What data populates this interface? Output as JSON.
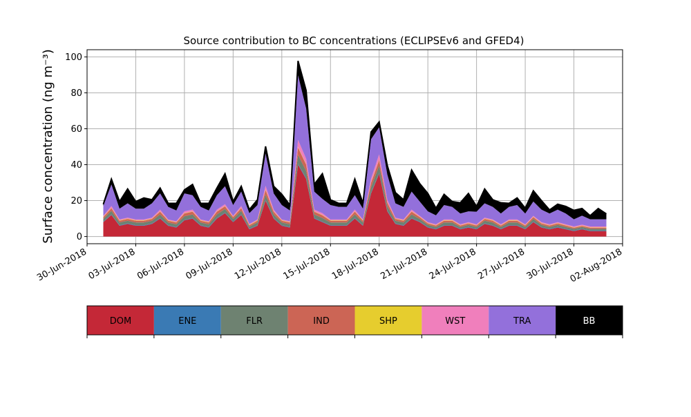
{
  "chart_data": {
    "type": "area",
    "stacked": true,
    "title": "Source contribution to BC concentrations (ECLIPSEv6 and GFED4)",
    "ylabel": "Surface concentration (ng m⁻³)",
    "xlabel": "",
    "ylim": [
      -4,
      104
    ],
    "xlim": [
      "2018-06-30",
      "2018-08-02"
    ],
    "grid": true,
    "yticks": [
      0,
      20,
      40,
      60,
      80,
      100
    ],
    "xticks": [
      "30-Jun-2018",
      "03-Jul-2018",
      "06-Jul-2018",
      "09-Jul-2018",
      "12-Jul-2018",
      "15-Jul-2018",
      "18-Jul-2018",
      "21-Jul-2018",
      "24-Jul-2018",
      "27-Jul-2018",
      "30-Jul-2018",
      "02-Aug-2018"
    ],
    "legend_location": "colorbar below plot",
    "total_outline_color": "#000000",
    "x": [
      "2018-07-01",
      "2018-07-01T12",
      "2018-07-02",
      "2018-07-02T12",
      "2018-07-03",
      "2018-07-03T12",
      "2018-07-04",
      "2018-07-04T12",
      "2018-07-05",
      "2018-07-05T12",
      "2018-07-06",
      "2018-07-06T12",
      "2018-07-07",
      "2018-07-07T12",
      "2018-07-08",
      "2018-07-08T12",
      "2018-07-09",
      "2018-07-09T12",
      "2018-07-10",
      "2018-07-10T12",
      "2018-07-11",
      "2018-07-11T12",
      "2018-07-12",
      "2018-07-12T12",
      "2018-07-13",
      "2018-07-13T12",
      "2018-07-14",
      "2018-07-14T12",
      "2018-07-15",
      "2018-07-15T12",
      "2018-07-16",
      "2018-07-16T12",
      "2018-07-17",
      "2018-07-17T12",
      "2018-07-18",
      "2018-07-18T12",
      "2018-07-19",
      "2018-07-19T12",
      "2018-07-20",
      "2018-07-20T12",
      "2018-07-21",
      "2018-07-21T12",
      "2018-07-22",
      "2018-07-22T12",
      "2018-07-23",
      "2018-07-23T12",
      "2018-07-24",
      "2018-07-24T12",
      "2018-07-25",
      "2018-07-25T12",
      "2018-07-26",
      "2018-07-26T12",
      "2018-07-27",
      "2018-07-27T12",
      "2018-07-28",
      "2018-07-28T12",
      "2018-07-29",
      "2018-07-29T12",
      "2018-07-30",
      "2018-07-30T12",
      "2018-07-31",
      "2018-07-31T12",
      "2018-08-01"
    ],
    "series": [
      {
        "name": "DOM",
        "color": "#c42837",
        "values": [
          8,
          12,
          6,
          7,
          6,
          6,
          7,
          10,
          6,
          5,
          9,
          10,
          6,
          5,
          10,
          13,
          8,
          12,
          4,
          6,
          20,
          10,
          6,
          5,
          40,
          32,
          10,
          8,
          6,
          6,
          6,
          10,
          6,
          24,
          35,
          14,
          7,
          6,
          10,
          8,
          5,
          4,
          6,
          6,
          4,
          5,
          4,
          7,
          6,
          4,
          6,
          6,
          4,
          8,
          5,
          4,
          5,
          4,
          3,
          4,
          3,
          3,
          3
        ]
      },
      {
        "name": "ENE",
        "color": "#3a7ab4",
        "values": [
          0.3,
          0.3,
          0.3,
          0.3,
          0.3,
          0.3,
          0.3,
          0.3,
          0.3,
          0.3,
          0.3,
          0.3,
          0.3,
          0.3,
          0.3,
          0.3,
          0.3,
          0.3,
          0.3,
          0.3,
          0.4,
          0.3,
          0.3,
          0.3,
          0.5,
          0.5,
          0.3,
          0.3,
          0.3,
          0.3,
          0.3,
          0.3,
          0.3,
          0.4,
          0.5,
          0.4,
          0.3,
          0.3,
          0.3,
          0.3,
          0.3,
          0.3,
          0.3,
          0.3,
          0.3,
          0.3,
          0.3,
          0.3,
          0.3,
          0.3,
          0.3,
          0.3,
          0.3,
          0.3,
          0.3,
          0.3,
          0.3,
          0.3,
          0.3,
          0.3,
          0.3,
          0.3,
          0.3
        ]
      },
      {
        "name": "FLR",
        "color": "#6e8271",
        "values": [
          1.5,
          2,
          1.5,
          1.5,
          1.5,
          1.5,
          1.5,
          2,
          1.5,
          1.5,
          2,
          2,
          1.5,
          1.5,
          2,
          2,
          1.5,
          2,
          1.2,
          1.5,
          3,
          2,
          1.5,
          1.5,
          5,
          4,
          2,
          2,
          1.5,
          1.5,
          1.5,
          2,
          1.5,
          3,
          4,
          2.5,
          1.5,
          1.5,
          2,
          1.5,
          1.2,
          1,
          1.5,
          1.5,
          1,
          1.2,
          1,
          1.5,
          1.5,
          1,
          1.5,
          1.5,
          1,
          1.5,
          1.2,
          1,
          1.2,
          1,
          1,
          1,
          1,
          1,
          1
        ]
      },
      {
        "name": "IND",
        "color": "#cc6555",
        "values": [
          1,
          1.5,
          1,
          1,
          1,
          1,
          1,
          1.5,
          1,
          1,
          1.5,
          1.5,
          1,
          1,
          1.5,
          1.5,
          1,
          1.5,
          0.8,
          1,
          2.5,
          1.5,
          1,
          1,
          4,
          3.5,
          1.5,
          1.5,
          1,
          1,
          1,
          1.5,
          1,
          2.5,
          3,
          2,
          1,
          1,
          1.5,
          1,
          0.8,
          0.8,
          1,
          1,
          0.8,
          0.8,
          0.8,
          1,
          1,
          0.8,
          1,
          1,
          0.8,
          1,
          0.8,
          0.8,
          0.8,
          0.8,
          0.6,
          0.6,
          0.6,
          0.6,
          0.6
        ]
      },
      {
        "name": "SHP",
        "color": "#e6cd2e",
        "values": [
          0.2,
          0.2,
          0.2,
          0.2,
          0.2,
          0.2,
          0.2,
          0.2,
          0.2,
          0.2,
          0.2,
          0.2,
          0.2,
          0.2,
          0.2,
          0.2,
          0.2,
          0.2,
          0.2,
          0.2,
          0.3,
          0.2,
          0.2,
          0.2,
          0.3,
          0.3,
          0.2,
          0.2,
          0.2,
          0.2,
          0.2,
          0.2,
          0.2,
          0.3,
          0.3,
          0.2,
          0.2,
          0.2,
          0.2,
          0.2,
          0.2,
          0.2,
          0.2,
          0.2,
          0.2,
          0.2,
          0.2,
          0.2,
          0.2,
          0.2,
          0.2,
          0.2,
          0.2,
          0.2,
          0.2,
          0.2,
          0.2,
          0.2,
          0.2,
          0.2,
          0.2,
          0.2,
          0.2
        ]
      },
      {
        "name": "WST",
        "color": "#f07fbc",
        "values": [
          0.5,
          1,
          0.5,
          0.5,
          0.5,
          0.5,
          0.5,
          1,
          0.5,
          0.5,
          1,
          1,
          0.5,
          0.5,
          1,
          1,
          0.5,
          1,
          0.5,
          0.5,
          2,
          1,
          0.5,
          0.5,
          4,
          3,
          1,
          1,
          0.5,
          0.5,
          0.5,
          1,
          0.5,
          2,
          3,
          1.5,
          0.5,
          0.5,
          1,
          0.5,
          0.5,
          0.5,
          0.5,
          0.5,
          0.5,
          0.5,
          0.5,
          0.5,
          0.5,
          0.5,
          0.5,
          0.5,
          0.5,
          0.5,
          0.5,
          0.5,
          0.5,
          0.5,
          0.5,
          0.5,
          0.5,
          0.5,
          0.5
        ]
      },
      {
        "name": "TRA",
        "color": "#9370db",
        "values": [
          5.5,
          12,
          6,
          8,
          6,
          6,
          8,
          9,
          7,
          6,
          10,
          8,
          7,
          6,
          8,
          10,
          6,
          8,
          6,
          8,
          18,
          9,
          8,
          6,
          36,
          28,
          10,
          8,
          8,
          7,
          7,
          8,
          6,
          22,
          15,
          14,
          8,
          7,
          10,
          8,
          6,
          5,
          8,
          7,
          6,
          6,
          7,
          8,
          7,
          6,
          7,
          8,
          6,
          8,
          7,
          6,
          7,
          6,
          4,
          5,
          4,
          4,
          4
        ]
      },
      {
        "name": "BB",
        "color": "#000000",
        "values": [
          1,
          3,
          4,
          8,
          4,
          6,
          2,
          3,
          2,
          4,
          2,
          6,
          2,
          4,
          4,
          7,
          2,
          3,
          2,
          3,
          4,
          4,
          6,
          3,
          8,
          10,
          4,
          14,
          3,
          2,
          2,
          9,
          3,
          4,
          3,
          5,
          6,
          4,
          12,
          10,
          10,
          4,
          6,
          3,
          6,
          10,
          3,
          8,
          4,
          6,
          2,
          4,
          3,
          6,
          5,
          2,
          3,
          4,
          5,
          4,
          2,
          6,
          3
        ]
      }
    ]
  }
}
